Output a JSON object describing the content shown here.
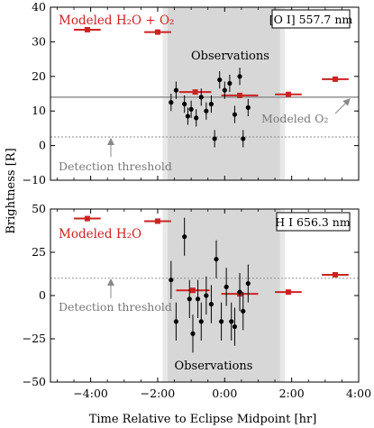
{
  "chart_data": [
    {
      "type": "scatter",
      "ylim": [
        -10,
        40
      ],
      "yticks": [
        -10,
        0,
        10,
        20,
        30,
        40
      ],
      "xlim": [
        -5.2,
        4.0
      ],
      "xticks": [
        -4,
        -2,
        0,
        2,
        4
      ],
      "eclipse_band": [
        -1.85,
        1.8
      ],
      "eclipse_core": [
        -1.7,
        1.65
      ],
      "line_box_label": "[O I] 557.7 nm",
      "observations_label": "Observations",
      "model_label": "Modeled H₂O + O₂",
      "o2_label": "Modeled O₂",
      "threshold_label": "Detection threshold",
      "o2_level": 14,
      "threshold_level": 2.5,
      "model_points": [
        {
          "x": -4.1,
          "xerr": 0.4,
          "y": 33.5
        },
        {
          "x": -2.0,
          "xerr": 0.4,
          "y": 32.8
        },
        {
          "x": -0.88,
          "xerr": 0.48,
          "y": 15.5
        },
        {
          "x": 0.45,
          "xerr": 0.55,
          "y": 14.5
        },
        {
          "x": 1.9,
          "xerr": 0.4,
          "y": 14.8
        },
        {
          "x": 3.3,
          "xerr": 0.4,
          "y": 19.2
        }
      ],
      "observations": [
        {
          "x": -1.6,
          "y": 12.5,
          "err": 2.5
        },
        {
          "x": -1.45,
          "y": 16.0,
          "err": 2.5
        },
        {
          "x": -1.2,
          "y": 12.0,
          "err": 2.5
        },
        {
          "x": -1.1,
          "y": 8.5,
          "err": 2.5
        },
        {
          "x": -1.0,
          "y": 10.5,
          "err": 2.5
        },
        {
          "x": -0.85,
          "y": 8.0,
          "err": 2.5
        },
        {
          "x": -0.7,
          "y": 14.0,
          "err": 2.5
        },
        {
          "x": -0.55,
          "y": 10.0,
          "err": 2.5
        },
        {
          "x": -0.4,
          "y": 12.0,
          "err": 2.5
        },
        {
          "x": -0.3,
          "y": 2.0,
          "err": 2.5
        },
        {
          "x": -0.15,
          "y": 19.0,
          "err": 2.5
        },
        {
          "x": 0.0,
          "y": 16.0,
          "err": 2.5
        },
        {
          "x": 0.15,
          "y": 18.0,
          "err": 2.5
        },
        {
          "x": 0.3,
          "y": 9.0,
          "err": 2.5
        },
        {
          "x": 0.45,
          "y": 20.0,
          "err": 2.5
        },
        {
          "x": 0.55,
          "y": 2.0,
          "err": 2.5
        },
        {
          "x": 0.7,
          "y": 11.0,
          "err": 2.5
        }
      ]
    },
    {
      "type": "scatter",
      "ylim": [
        -50,
        50
      ],
      "yticks": [
        -50,
        -25,
        0,
        25,
        50
      ],
      "xlim": [
        -5.2,
        4.0
      ],
      "xticks": [
        -4,
        -2,
        0,
        2,
        4
      ],
      "xtick_labels": [
        "−4:00",
        "−2:00",
        "0:00",
        "2:00",
        "4:00"
      ],
      "eclipse_band": [
        -1.85,
        1.8
      ],
      "eclipse_core": [
        -1.7,
        1.65
      ],
      "line_box_label": "H I 656.3 nm",
      "observations_label": "Observations",
      "model_label": "Modeled H₂O",
      "threshold_label": "Detection threshold",
      "threshold_level": 10,
      "model_points": [
        {
          "x": -4.1,
          "xerr": 0.4,
          "y": 44.5
        },
        {
          "x": -2.0,
          "xerr": 0.4,
          "y": 43.0
        },
        {
          "x": -0.95,
          "xerr": 0.5,
          "y": 3.0
        },
        {
          "x": 0.45,
          "xerr": 0.55,
          "y": 1.0
        },
        {
          "x": 1.9,
          "xerr": 0.4,
          "y": 2.0
        },
        {
          "x": 3.3,
          "xerr": 0.4,
          "y": 12.0
        }
      ],
      "observations": [
        {
          "x": -1.6,
          "y": 9.0,
          "err": 11
        },
        {
          "x": -1.45,
          "y": -15.0,
          "err": 11
        },
        {
          "x": -1.2,
          "y": 34.0,
          "err": 11
        },
        {
          "x": -1.05,
          "y": -2.0,
          "err": 11
        },
        {
          "x": -0.95,
          "y": -22.0,
          "err": 11
        },
        {
          "x": -0.8,
          "y": -2.0,
          "err": 11
        },
        {
          "x": -0.7,
          "y": -15.0,
          "err": 11
        },
        {
          "x": -0.55,
          "y": 0.0,
          "err": 11
        },
        {
          "x": -0.4,
          "y": -5.0,
          "err": 11
        },
        {
          "x": -0.25,
          "y": 21.0,
          "err": 11
        },
        {
          "x": -0.1,
          "y": -15.0,
          "err": 11
        },
        {
          "x": 0.05,
          "y": 5.0,
          "err": 11
        },
        {
          "x": 0.2,
          "y": -15.0,
          "err": 11
        },
        {
          "x": 0.3,
          "y": -18.0,
          "err": 11
        },
        {
          "x": 0.45,
          "y": 2.0,
          "err": 11
        },
        {
          "x": 0.55,
          "y": -9.0,
          "err": 11
        },
        {
          "x": 0.7,
          "y": 7.0,
          "err": 11
        }
      ]
    }
  ],
  "xlabel": "Time Relative to Eclipse Midpoint [hr]",
  "ylabel": "Brightness [R]",
  "colors": {
    "model": "#cc2222",
    "observation": "#000000",
    "band_outer": "#e8e8e8",
    "band_inner": "#d7d7d7",
    "o2_line": "#888888",
    "threshold_line": "#888888"
  }
}
